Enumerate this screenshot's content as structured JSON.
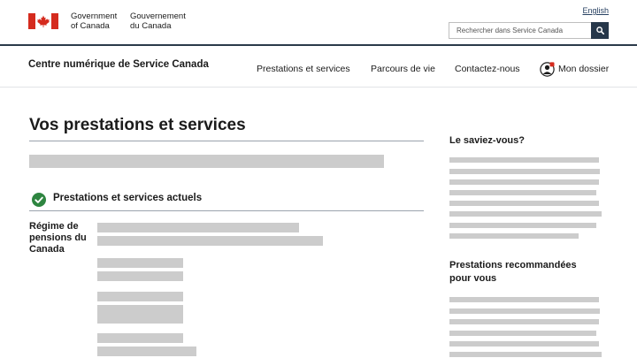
{
  "header": {
    "gov_en_line1": "Government",
    "gov_en_line2": "of Canada",
    "gov_fr_line1": "Gouvernement",
    "gov_fr_line2": "du Canada",
    "language_link": "English",
    "search_placeholder": "Rechercher dans Service Canada",
    "icons": {
      "flag": "canada-flag-icon",
      "search": "search-icon"
    }
  },
  "nav": {
    "site_title": "Centre numérique de Service Canada",
    "items": [
      {
        "label": "Prestations et services"
      },
      {
        "label": "Parcours de vie"
      },
      {
        "label": "Contactez-nous"
      },
      {
        "label": "Mon dossier",
        "icon": "user-account-icon"
      }
    ]
  },
  "main": {
    "title": "Vos prestations et services",
    "section_title": "Prestations et services actuels",
    "section_icon": "check-circle-icon",
    "benefit_name": "Régime de pensions du Canada"
  },
  "sidebar": {
    "did_you_know_title": "Le saviez-vous?",
    "recommended_title": "Prestations recommandées pour vous"
  },
  "colors": {
    "header_border": "#2b3a4a",
    "search_button": "#26374a",
    "flag_red": "#d52b1e",
    "check_green": "#2e8540",
    "placeholder_bar": "#cccccc",
    "link": "#284162"
  }
}
